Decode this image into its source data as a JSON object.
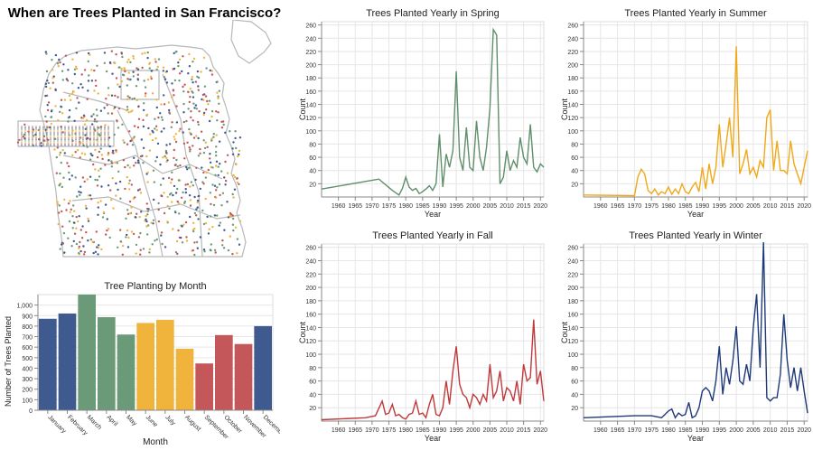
{
  "main_title": "When are Trees Planted in San Francisco?",
  "colors": {
    "spring": "#6a9a78",
    "summer": "#f0b43c",
    "fall": "#c4575a",
    "winter": "#3f5a8f",
    "winter_line": "#1f3a78",
    "fall_line": "#c0393b",
    "summer_line": "#f0a818",
    "spring_line": "#5f8f6b",
    "grid": "#e6e6e6",
    "axis": "#888888",
    "map_outline": "#b8b8b8"
  },
  "map": {
    "colors": [
      "#6a9a78",
      "#f0b43c",
      "#c4575a",
      "#3f5a8f"
    ]
  },
  "chart_data": [
    {
      "id": "month",
      "type": "bar",
      "title": "Tree Planting by Month",
      "xlabel": "Month",
      "ylabel": "Number of Trees Planted",
      "ylim": [
        0,
        1100
      ],
      "yticks": [
        0,
        100,
        200,
        300,
        400,
        500,
        600,
        700,
        800,
        900,
        1000
      ],
      "yticklabels": [
        "0",
        "100",
        "200",
        "300",
        "400",
        "500",
        "600",
        "700",
        "800",
        "900",
        "1,000"
      ],
      "categories": [
        "January",
        "February",
        "March",
        "April",
        "May",
        "June",
        "July",
        "August",
        "September",
        "October",
        "November",
        "December"
      ],
      "values": [
        870,
        920,
        1100,
        885,
        720,
        830,
        860,
        585,
        445,
        715,
        630,
        800
      ],
      "bar_colors": [
        "#3f5a8f",
        "#3f5a8f",
        "#6a9a78",
        "#6a9a78",
        "#6a9a78",
        "#f0b43c",
        "#f0b43c",
        "#f0b43c",
        "#c4575a",
        "#c4575a",
        "#c4575a",
        "#3f5a8f"
      ]
    },
    {
      "id": "spring",
      "type": "line",
      "title": "Trees Planted Yearly in Spring",
      "xlabel": "Year",
      "ylabel": "Count",
      "xlim": [
        1955,
        2021
      ],
      "ylim": [
        0,
        265
      ],
      "xticks": [
        1960,
        1965,
        1970,
        1975,
        1980,
        1985,
        1990,
        1995,
        2000,
        2005,
        2010,
        2015,
        2020
      ],
      "yticks": [
        20,
        40,
        60,
        80,
        100,
        120,
        140,
        160,
        180,
        200,
        220,
        240,
        260
      ],
      "color": "#5f8f6b",
      "x": [
        1955,
        1972,
        1976,
        1978,
        1979,
        1980,
        1981,
        1982,
        1983,
        1984,
        1985,
        1986,
        1987,
        1988,
        1989,
        1990,
        1991,
        1992,
        1993,
        1994,
        1995,
        1996,
        1997,
        1998,
        1999,
        2000,
        2001,
        2002,
        2003,
        2004,
        2005,
        2006,
        2007,
        2008,
        2009,
        2010,
        2011,
        2012,
        2013,
        2014,
        2015,
        2016,
        2017,
        2018,
        2019,
        2020,
        2021
      ],
      "y": [
        12,
        27,
        10,
        3,
        13,
        30,
        15,
        10,
        13,
        5,
        8,
        12,
        17,
        10,
        20,
        95,
        15,
        65,
        45,
        70,
        190,
        60,
        40,
        105,
        45,
        40,
        115,
        60,
        40,
        75,
        135,
        253,
        245,
        20,
        30,
        70,
        40,
        55,
        45,
        90,
        60,
        50,
        110,
        45,
        38,
        50,
        45
      ]
    },
    {
      "id": "summer",
      "type": "line",
      "title": "Trees Planted Yearly in Summer",
      "xlabel": "Year",
      "ylabel": "Count",
      "xlim": [
        1955,
        2021
      ],
      "ylim": [
        0,
        265
      ],
      "xticks": [
        1960,
        1965,
        1970,
        1975,
        1980,
        1985,
        1990,
        1995,
        2000,
        2005,
        2010,
        2015,
        2020
      ],
      "yticks": [
        20,
        40,
        60,
        80,
        100,
        120,
        140,
        160,
        180,
        200,
        220,
        240,
        260
      ],
      "color": "#f0a818",
      "x": [
        1955,
        1970,
        1971,
        1972,
        1973,
        1974,
        1975,
        1976,
        1977,
        1978,
        1979,
        1980,
        1981,
        1982,
        1983,
        1984,
        1985,
        1986,
        1987,
        1988,
        1989,
        1990,
        1991,
        1992,
        1993,
        1994,
        1995,
        1996,
        1997,
        1998,
        1999,
        2000,
        2001,
        2002,
        2003,
        2004,
        2005,
        2006,
        2007,
        2008,
        2009,
        2010,
        2011,
        2012,
        2013,
        2014,
        2015,
        2016,
        2017,
        2018,
        2019,
        2020,
        2021
      ],
      "y": [
        3,
        2,
        30,
        42,
        35,
        10,
        5,
        12,
        3,
        8,
        5,
        15,
        4,
        12,
        5,
        20,
        8,
        5,
        15,
        22,
        8,
        45,
        12,
        50,
        20,
        45,
        110,
        45,
        80,
        120,
        60,
        228,
        35,
        50,
        72,
        35,
        45,
        30,
        55,
        45,
        120,
        132,
        40,
        85,
        40,
        40,
        35,
        85,
        50,
        35,
        20,
        45,
        70
      ]
    },
    {
      "id": "fall",
      "type": "line",
      "title": "Trees Planted Yearly in Fall",
      "xlabel": "Year",
      "ylabel": "Count",
      "xlim": [
        1955,
        2021
      ],
      "ylim": [
        0,
        265
      ],
      "xticks": [
        1960,
        1965,
        1970,
        1975,
        1980,
        1985,
        1990,
        1995,
        2000,
        2005,
        2010,
        2015,
        2020
      ],
      "yticks": [
        20,
        40,
        60,
        80,
        100,
        120,
        140,
        160,
        180,
        200,
        220,
        240,
        260
      ],
      "color": "#c0393b",
      "x": [
        1955,
        1968,
        1971,
        1973,
        1974,
        1975,
        1976,
        1977,
        1978,
        1979,
        1980,
        1981,
        1982,
        1983,
        1984,
        1985,
        1986,
        1987,
        1988,
        1989,
        1990,
        1991,
        1992,
        1993,
        1994,
        1995,
        1996,
        1997,
        1998,
        1999,
        2000,
        2001,
        2002,
        2003,
        2004,
        2005,
        2006,
        2007,
        2008,
        2009,
        2010,
        2011,
        2012,
        2013,
        2014,
        2015,
        2016,
        2017,
        2018,
        2019,
        2020,
        2021
      ],
      "y": [
        2,
        5,
        8,
        30,
        10,
        12,
        25,
        8,
        10,
        5,
        3,
        10,
        12,
        30,
        10,
        12,
        5,
        25,
        40,
        10,
        8,
        20,
        60,
        25,
        75,
        112,
        55,
        40,
        35,
        20,
        40,
        35,
        25,
        40,
        30,
        85,
        35,
        45,
        75,
        30,
        50,
        45,
        30,
        60,
        25,
        85,
        60,
        65,
        152,
        55,
        75,
        30
      ]
    },
    {
      "id": "winter",
      "type": "line",
      "title": "Trees Planted Yearly in Winter",
      "xlabel": "Year",
      "ylabel": "Count",
      "xlim": [
        1955,
        2021
      ],
      "ylim": [
        0,
        265
      ],
      "xticks": [
        1960,
        1965,
        1970,
        1975,
        1980,
        1985,
        1990,
        1995,
        2000,
        2005,
        2010,
        2015,
        2020
      ],
      "yticks": [
        20,
        40,
        60,
        80,
        100,
        120,
        140,
        160,
        180,
        200,
        220,
        240,
        260
      ],
      "color": "#1f3a78",
      "x": [
        1955,
        1970,
        1975,
        1977,
        1978,
        1979,
        1980,
        1981,
        1982,
        1983,
        1984,
        1985,
        1986,
        1987,
        1988,
        1989,
        1990,
        1991,
        1992,
        1993,
        1994,
        1995,
        1996,
        1997,
        1998,
        1999,
        2000,
        2001,
        2002,
        2003,
        2004,
        2005,
        2006,
        2007,
        2008,
        2009,
        2010,
        2011,
        2012,
        2013,
        2014,
        2015,
        2016,
        2017,
        2018,
        2019,
        2020,
        2021
      ],
      "y": [
        5,
        8,
        8,
        6,
        5,
        10,
        15,
        18,
        5,
        12,
        8,
        10,
        28,
        5,
        8,
        20,
        45,
        50,
        45,
        30,
        60,
        112,
        40,
        80,
        55,
        90,
        142,
        60,
        55,
        85,
        60,
        140,
        190,
        80,
        268,
        35,
        30,
        35,
        35,
        70,
        160,
        90,
        50,
        80,
        45,
        80,
        45,
        12
      ]
    }
  ]
}
